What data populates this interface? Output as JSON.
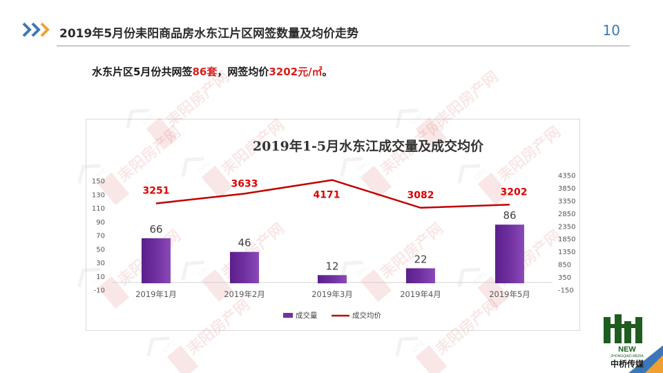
{
  "header": {
    "title": "2019年5月份耒阳商品房水东江片区网签数量及均价走势",
    "page_number": "10"
  },
  "summary": {
    "prefix": "水东片区5月份共网签",
    "count": "86套",
    "middle": "，网签均价",
    "price": "3202元/㎡",
    "suffix": "。"
  },
  "colors": {
    "accent_blue": "#3b77b8",
    "accent_orange": "#f0a030",
    "bar_purple": "#7030a0",
    "line_red": "#c00000",
    "label_red": "#e00000"
  },
  "watermark": {
    "text": "耒阳房产网",
    "secondary": "LYFC"
  },
  "logo": {
    "line1": "NEW",
    "line2": "ZHONGQIAO MEDIA",
    "line3": "中桥传媒"
  },
  "chart_data": {
    "type": "bar",
    "title": "2019年1-5月水东江成交量及成交均价",
    "categories": [
      "2019年1月",
      "2019年2月",
      "2019年3月",
      "2019年4月",
      "2019年5月"
    ],
    "series": [
      {
        "name": "成交量",
        "type": "bar",
        "axis": "left",
        "values": [
          66,
          46,
          12,
          22,
          86
        ]
      },
      {
        "name": "成交均价",
        "type": "line",
        "axis": "right",
        "values": [
          3251,
          3633,
          4171,
          3082,
          3202
        ]
      }
    ],
    "left_axis": {
      "min": -10,
      "max": 150,
      "ticks": [
        "150",
        "130",
        "110",
        "90",
        "70",
        "50",
        "30",
        "10",
        "-10"
      ]
    },
    "right_axis": {
      "min": -150,
      "max": 4350,
      "ticks": [
        "4350",
        "3850",
        "3350",
        "2850",
        "2350",
        "1850",
        "1350",
        "850",
        "350",
        "-150"
      ]
    },
    "grid": false,
    "legend_position": "bottom"
  }
}
